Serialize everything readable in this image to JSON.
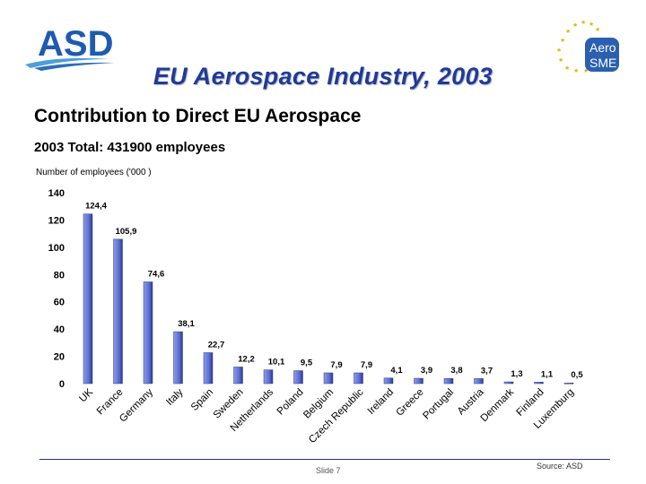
{
  "header": {
    "logo_text": "ASD",
    "badge_line1": "Aero",
    "badge_line2": "SME",
    "title": "EU Aerospace Industry, 2003"
  },
  "subtitle": "Contribution to Direct EU Aerospace",
  "total_label": "2003 Total: 431900 employees",
  "footer": {
    "slide": "Slide 7",
    "source": "Source: ASD"
  },
  "colors": {
    "bar": "#5b6fd1",
    "bar_dark": "#2d3a8c",
    "title": "#1f3a9a"
  },
  "chart_data": {
    "type": "bar",
    "title": "",
    "ylabel": "Number of employees ('000 )",
    "xlabel": "",
    "ylim": [
      0,
      140
    ],
    "yticks": [
      0,
      20,
      40,
      60,
      80,
      100,
      120,
      140
    ],
    "grid": false,
    "categories": [
      "UK",
      "France",
      "Germany",
      "Italy",
      "Spain",
      "Sweden",
      "Netherlands",
      "Poland",
      "Belgium",
      "Czech Republic",
      "Ireland",
      "Greece",
      "Portugal",
      "Austria",
      "Denmark",
      "Finland",
      "Luxemburg"
    ],
    "values": [
      124.4,
      105.9,
      74.6,
      38.1,
      22.7,
      12.2,
      10.1,
      9.5,
      7.9,
      7.9,
      4.1,
      3.9,
      3.8,
      3.7,
      1.3,
      1.1,
      0.5
    ],
    "value_labels": [
      "124,4",
      "105,9",
      "74,6",
      "38,1",
      "22,7",
      "12,2",
      "10,1",
      "9,5",
      "7,9",
      "7,9",
      "4,1",
      "3,9",
      "3,8",
      "3,7",
      "1,3",
      "1,1",
      "0,5"
    ]
  }
}
